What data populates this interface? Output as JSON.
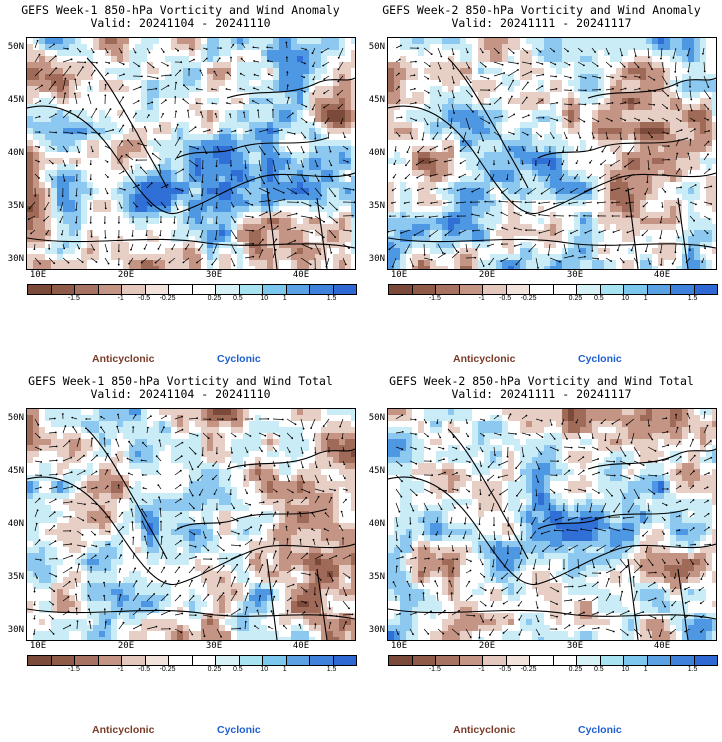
{
  "panels": [
    {
      "title": "GEFS Week-1 850-hPa Vorticity and Wind Anomaly",
      "valid": "Valid: 20241104 - 20241110",
      "pattern": "w1anom"
    },
    {
      "title": "GEFS Week-2 850-hPa Vorticity and Wind Anomaly",
      "valid": "Valid: 20241111 - 20241117",
      "pattern": "w2anom"
    },
    {
      "title": "GEFS Week-1 850-hPa Vorticity and Wind Total",
      "valid": "Valid: 20241104 - 20241110",
      "pattern": "w1total"
    },
    {
      "title": "GEFS Week-2 850-hPa Vorticity and Wind Total",
      "valid": "Valid: 20241111 - 20241117",
      "pattern": "w2total"
    }
  ],
  "map": {
    "lat_labels": [
      "50N",
      "45N",
      "40N",
      "35N",
      "30N"
    ],
    "lon_labels": [
      "10E",
      "20E",
      "30E",
      "40E"
    ]
  },
  "colorbar": {
    "colors": [
      "#7b4a3a",
      "#8f5a47",
      "#a87262",
      "#c49484",
      "#e4c7bd",
      "#f2e3dd",
      "#ffffff",
      "#ffffff",
      "#d7f2f7",
      "#a8e3f2",
      "#7cc7ee",
      "#5aa2e3",
      "#3f82dc",
      "#2f68d2"
    ],
    "labels": [
      "-1.5",
      "-1",
      "-0.5",
      "-0.25",
      "0.25",
      "0.5",
      "1",
      "1.5"
    ],
    "center_mark": "10"
  },
  "legend": {
    "anticyclonic": "Anticyclonic",
    "cyclonic": "Cyclonic"
  },
  "colors": {
    "anticyclonic": "#8a5a4a",
    "anticyclonic_light": "#c9a090",
    "cyclonic": "#3a8ae0",
    "cyclonic_light": "#a8d8f2"
  }
}
